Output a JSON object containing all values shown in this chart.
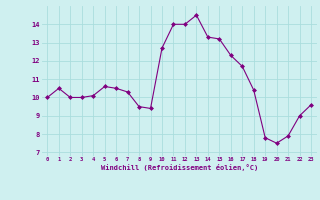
{
  "x": [
    0,
    1,
    2,
    3,
    4,
    5,
    6,
    7,
    8,
    9,
    10,
    11,
    12,
    13,
    14,
    15,
    16,
    17,
    18,
    19,
    20,
    21,
    22,
    23
  ],
  "y": [
    10.0,
    10.5,
    10.0,
    10.0,
    10.1,
    10.6,
    10.5,
    10.3,
    9.5,
    9.4,
    12.7,
    14.0,
    14.0,
    14.5,
    13.3,
    13.2,
    12.3,
    11.7,
    10.4,
    7.8,
    7.5,
    7.9,
    9.0,
    9.6
  ],
  "line_color": "#800080",
  "marker": "D",
  "marker_size": 2.0,
  "background_color": "#cff0f0",
  "grid_color": "#aadddd",
  "xlabel": "Windchill (Refroidissement éolien,°C)",
  "xlabel_color": "#800080",
  "tick_color": "#800080",
  "ylabel_ticks": [
    7,
    8,
    9,
    10,
    11,
    12,
    13,
    14
  ],
  "xlim": [
    -0.5,
    23.5
  ],
  "ylim": [
    6.8,
    15.0
  ],
  "xtick_labels": [
    "0",
    "1",
    "2",
    "3",
    "4",
    "5",
    "6",
    "7",
    "8",
    "9",
    "10",
    "11",
    "12",
    "13",
    "14",
    "15",
    "16",
    "17",
    "18",
    "19",
    "20",
    "21",
    "22",
    "23"
  ]
}
